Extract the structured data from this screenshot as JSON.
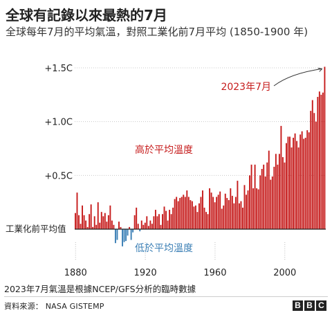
{
  "title": "全球有記錄以來最熱的7月",
  "subtitle": "全球每年7月的平均氣溫，對照工業化前7月平均 (1850-1900 年)",
  "footnote": "2023年7月氣溫是根據NCEP/GFS分析的臨時數據",
  "source": "資料來源： NASA GISTEMP",
  "logo": [
    "B",
    "B",
    "C"
  ],
  "colors": {
    "above": "#c61c1c",
    "below": "#3b7fb5",
    "grid": "#c8c8c8",
    "baseline": "#222222"
  },
  "chart_data": {
    "type": "bar",
    "title": "全球有記錄以來最熱的7月",
    "ylabel": "",
    "xlabel": "",
    "ylim": [
      -0.25,
      1.55
    ],
    "y_ticks": [
      {
        "value": 1.5,
        "label": "+1.5C"
      },
      {
        "value": 1.0,
        "label": "+1.0C"
      },
      {
        "value": 0.5,
        "label": "+0.5C"
      },
      {
        "value": 0.0,
        "label": "工業化前平均值"
      }
    ],
    "x_ticks": [
      1880,
      1920,
      1960,
      2000
    ],
    "annotations": {
      "above": "高於平均溫度",
      "below": "低於平均溫度",
      "latest": "2023年7月"
    },
    "x": [
      1880,
      1881,
      1882,
      1883,
      1884,
      1885,
      1886,
      1887,
      1888,
      1889,
      1890,
      1891,
      1892,
      1893,
      1894,
      1895,
      1896,
      1897,
      1898,
      1899,
      1900,
      1901,
      1902,
      1903,
      1904,
      1905,
      1906,
      1907,
      1908,
      1909,
      1910,
      1911,
      1912,
      1913,
      1914,
      1915,
      1916,
      1917,
      1918,
      1919,
      1920,
      1921,
      1922,
      1923,
      1924,
      1925,
      1926,
      1927,
      1928,
      1929,
      1930,
      1931,
      1932,
      1933,
      1934,
      1935,
      1936,
      1937,
      1938,
      1939,
      1940,
      1941,
      1942,
      1943,
      1944,
      1945,
      1946,
      1947,
      1948,
      1949,
      1950,
      1951,
      1952,
      1953,
      1954,
      1955,
      1956,
      1957,
      1958,
      1959,
      1960,
      1961,
      1962,
      1963,
      1964,
      1965,
      1966,
      1967,
      1968,
      1969,
      1970,
      1971,
      1972,
      1973,
      1974,
      1975,
      1976,
      1977,
      1978,
      1979,
      1980,
      1981,
      1982,
      1983,
      1984,
      1985,
      1986,
      1987,
      1988,
      1989,
      1990,
      1991,
      1992,
      1993,
      1994,
      1995,
      1996,
      1997,
      1998,
      1999,
      2000,
      2001,
      2002,
      2003,
      2004,
      2005,
      2006,
      2007,
      2008,
      2009,
      2010,
      2011,
      2012,
      2013,
      2014,
      2015,
      2016,
      2017,
      2018,
      2019,
      2020,
      2021,
      2022,
      2023
    ],
    "series": [
      {
        "values": [
          0.15,
          0.34,
          0.13,
          0.05,
          0.22,
          0.13,
          0.08,
          0.02,
          0.14,
          0.23,
          0.02,
          0.12,
          0.04,
          0.25,
          0.06,
          0.16,
          0.12,
          0.15,
          0.07,
          0.13,
          0.22,
          0.08,
          0.04,
          -0.13,
          -0.1,
          0.07,
          0.02,
          -0.16,
          -0.12,
          -0.11,
          -0.06,
          0.02,
          -0.1,
          -0.03,
          0.13,
          0.2,
          0.05,
          -0.02,
          0.08,
          0.04,
          0.06,
          0.12,
          0.03,
          0.08,
          0.05,
          0.12,
          0.18,
          0.12,
          0.14,
          0.04,
          0.14,
          0.21,
          0.17,
          0.08,
          0.18,
          0.14,
          0.2,
          0.28,
          0.3,
          0.26,
          0.29,
          0.3,
          0.32,
          0.3,
          0.36,
          0.3,
          0.27,
          0.26,
          0.21,
          0.22,
          0.16,
          0.24,
          0.3,
          0.36,
          0.2,
          0.16,
          0.14,
          0.38,
          0.34,
          0.3,
          0.25,
          0.3,
          0.32,
          0.35,
          0.19,
          0.22,
          0.33,
          0.29,
          0.27,
          0.38,
          0.31,
          0.24,
          0.3,
          0.45,
          0.24,
          0.26,
          0.2,
          0.41,
          0.32,
          0.36,
          0.5,
          0.6,
          0.38,
          0.6,
          0.38,
          0.37,
          0.5,
          0.56,
          0.6,
          0.49,
          0.62,
          0.73,
          0.46,
          0.49,
          0.58,
          0.7,
          0.6,
          0.7,
          0.96,
          0.67,
          0.62,
          0.8,
          0.86,
          0.86,
          0.76,
          0.85,
          0.89,
          0.82,
          0.76,
          0.88,
          0.91,
          0.84,
          0.85,
          0.92,
          0.9,
          1.1,
          1.2,
          1.08,
          1.0,
          1.23,
          1.28,
          1.25,
          1.27,
          1.51
        ]
      }
    ]
  }
}
